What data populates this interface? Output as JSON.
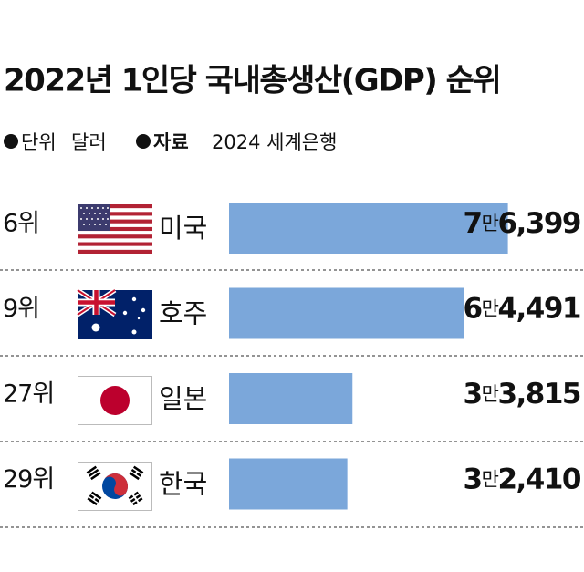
{
  "chart_data": {
    "type": "bar",
    "orientation": "horizontal",
    "title": "2022년 1인당 국내총생산(GDP) 순위",
    "unit_label": "단위",
    "unit": "달러",
    "source_label": "자료",
    "source": "2024 세계은행",
    "ranks": [
      "6위",
      "9위",
      "27위",
      "29위"
    ],
    "categories": [
      "미국",
      "호주",
      "일본",
      "한국"
    ],
    "values": [
      76399,
      64491,
      33815,
      32410
    ],
    "value_labels": [
      "7만6,399",
      "6만4,491",
      "3만3,815",
      "3만2,410"
    ],
    "color": "#7ba7da"
  }
}
